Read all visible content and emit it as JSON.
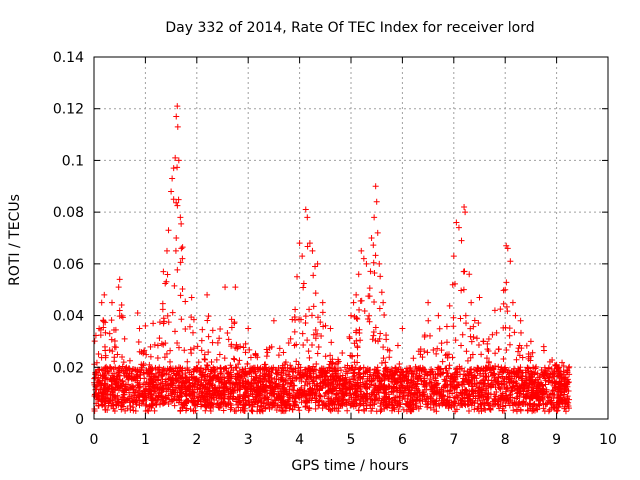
{
  "chart_data": {
    "type": "scatter",
    "title": "Day 332 of 2014, Rate Of TEC Index for receiver lord",
    "xlabel": "GPS time / hours",
    "ylabel": "ROTI / TECUs",
    "xlim": [
      0,
      10
    ],
    "ylim": [
      0,
      0.14
    ],
    "x_ticks": [
      0,
      1,
      2,
      3,
      4,
      5,
      6,
      7,
      8,
      9,
      10
    ],
    "y_ticks": [
      0,
      0.02,
      0.04,
      0.06,
      0.08,
      0.1,
      0.12,
      0.14
    ],
    "x_tick_labels": [
      "0",
      "1",
      "2",
      "3",
      "4",
      "5",
      "6",
      "7",
      "8",
      "9",
      "10"
    ],
    "y_tick_labels": [
      "0",
      "0.02",
      "0.04",
      "0.06",
      "0.08",
      "0.1",
      "0.12",
      "0.14"
    ],
    "grid": true,
    "marker": "+",
    "color": "#ff0000",
    "data_range_hours": [
      0,
      9.25
    ],
    "baseline_band": [
      0.005,
      0.02
    ],
    "highlight_points": [
      {
        "x": 0.1,
        "y": 0.035
      },
      {
        "x": 0.15,
        "y": 0.045
      },
      {
        "x": 0.2,
        "y": 0.048
      },
      {
        "x": 0.35,
        "y": 0.045
      },
      {
        "x": 0.5,
        "y": 0.054
      },
      {
        "x": 0.48,
        "y": 0.051
      },
      {
        "x": 0.85,
        "y": 0.041
      },
      {
        "x": 1.0,
        "y": 0.036
      },
      {
        "x": 1.15,
        "y": 0.037
      },
      {
        "x": 1.35,
        "y": 0.057
      },
      {
        "x": 1.42,
        "y": 0.065
      },
      {
        "x": 1.45,
        "y": 0.073
      },
      {
        "x": 1.5,
        "y": 0.088
      },
      {
        "x": 1.52,
        "y": 0.093
      },
      {
        "x": 1.55,
        "y": 0.097
      },
      {
        "x": 1.58,
        "y": 0.101
      },
      {
        "x": 1.6,
        "y": 0.117
      },
      {
        "x": 1.62,
        "y": 0.121
      },
      {
        "x": 1.63,
        "y": 0.113
      },
      {
        "x": 1.65,
        "y": 0.1
      },
      {
        "x": 1.68,
        "y": 0.078
      },
      {
        "x": 1.7,
        "y": 0.066
      },
      {
        "x": 1.72,
        "y": 0.062
      },
      {
        "x": 1.55,
        "y": 0.085
      },
      {
        "x": 1.6,
        "y": 0.07
      },
      {
        "x": 1.9,
        "y": 0.047
      },
      {
        "x": 2.2,
        "y": 0.048
      },
      {
        "x": 2.55,
        "y": 0.051
      },
      {
        "x": 2.75,
        "y": 0.051
      },
      {
        "x": 3.0,
        "y": 0.035
      },
      {
        "x": 3.5,
        "y": 0.038
      },
      {
        "x": 3.95,
        "y": 0.055
      },
      {
        "x": 4.0,
        "y": 0.068
      },
      {
        "x": 4.05,
        "y": 0.063
      },
      {
        "x": 4.12,
        "y": 0.081
      },
      {
        "x": 4.15,
        "y": 0.078
      },
      {
        "x": 4.2,
        "y": 0.068
      },
      {
        "x": 4.25,
        "y": 0.065
      },
      {
        "x": 4.3,
        "y": 0.059
      },
      {
        "x": 4.35,
        "y": 0.06
      },
      {
        "x": 4.45,
        "y": 0.045
      },
      {
        "x": 4.6,
        "y": 0.035
      },
      {
        "x": 5.0,
        "y": 0.04
      },
      {
        "x": 5.05,
        "y": 0.045
      },
      {
        "x": 5.1,
        "y": 0.048
      },
      {
        "x": 5.15,
        "y": 0.056
      },
      {
        "x": 5.2,
        "y": 0.065
      },
      {
        "x": 5.25,
        "y": 0.062
      },
      {
        "x": 5.3,
        "y": 0.06
      },
      {
        "x": 5.4,
        "y": 0.07
      },
      {
        "x": 5.45,
        "y": 0.078
      },
      {
        "x": 5.48,
        "y": 0.09
      },
      {
        "x": 5.5,
        "y": 0.084
      },
      {
        "x": 5.52,
        "y": 0.072
      },
      {
        "x": 5.55,
        "y": 0.06
      },
      {
        "x": 5.6,
        "y": 0.049
      },
      {
        "x": 6.0,
        "y": 0.035
      },
      {
        "x": 6.5,
        "y": 0.045
      },
      {
        "x": 6.7,
        "y": 0.04
      },
      {
        "x": 7.0,
        "y": 0.063
      },
      {
        "x": 7.05,
        "y": 0.076
      },
      {
        "x": 7.1,
        "y": 0.074
      },
      {
        "x": 7.15,
        "y": 0.069
      },
      {
        "x": 7.2,
        "y": 0.082
      },
      {
        "x": 7.22,
        "y": 0.08
      },
      {
        "x": 7.3,
        "y": 0.056
      },
      {
        "x": 7.5,
        "y": 0.047
      },
      {
        "x": 7.8,
        "y": 0.042
      },
      {
        "x": 8.0,
        "y": 0.05
      },
      {
        "x": 8.02,
        "y": 0.067
      },
      {
        "x": 8.05,
        "y": 0.066
      },
      {
        "x": 8.1,
        "y": 0.061
      },
      {
        "x": 8.15,
        "y": 0.045
      },
      {
        "x": 8.2,
        "y": 0.04
      },
      {
        "x": 8.3,
        "y": 0.038
      },
      {
        "x": 8.5,
        "y": 0.03
      },
      {
        "x": 8.75,
        "y": 0.028
      },
      {
        "x": 9.0,
        "y": 0.021
      },
      {
        "x": 9.2,
        "y": 0.018
      }
    ]
  }
}
